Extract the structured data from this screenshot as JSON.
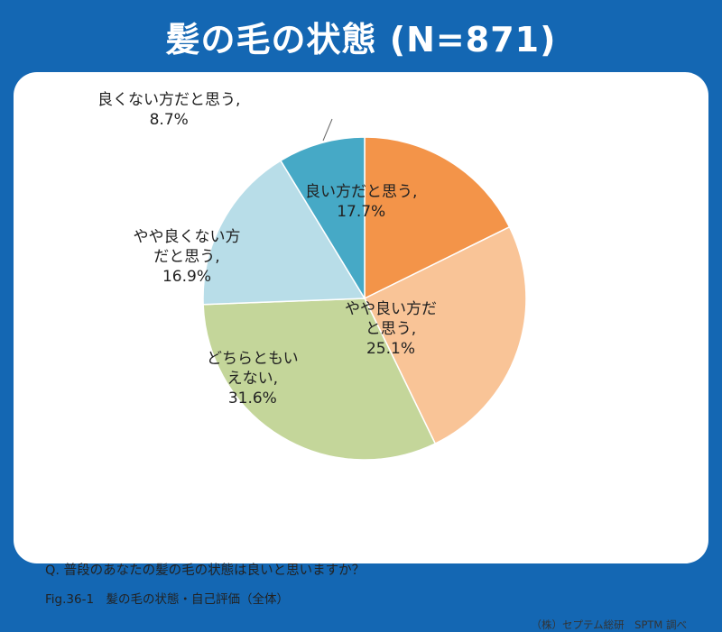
{
  "title": "髪の毛の状態 (N=871)",
  "chart_data": {
    "type": "pie",
    "n": 871,
    "slices": [
      {
        "label": "良い方だと思う,",
        "value": 17.7,
        "value_text": "17.7%",
        "color": "#f39449",
        "label_lines": [
          "良い方だと思う,",
          "17.7%"
        ]
      },
      {
        "label": "やや良い方だと思う,",
        "value": 25.1,
        "value_text": "25.1%",
        "color": "#f9c497",
        "label_lines": [
          "やや良い方だ",
          "と思う,",
          "25.1%"
        ]
      },
      {
        "label": "どちらともいえない,",
        "value": 31.6,
        "value_text": "31.6%",
        "color": "#c4d69a",
        "label_lines": [
          "どちらともい",
          "えない,",
          "31.6%"
        ]
      },
      {
        "label": "やや良くない方だと思う,",
        "value": 16.9,
        "value_text": "16.9%",
        "color": "#b8dde8",
        "label_lines": [
          "やや良くない方",
          "だと思う,",
          "16.9%"
        ]
      },
      {
        "label": "良くない方だと思う,",
        "value": 8.7,
        "value_text": "8.7%",
        "color": "#46a9c6",
        "label_lines": [
          "良くない方だと思う,",
          "8.7%"
        ]
      }
    ]
  },
  "question": "Q. 普段のあなたの髪の毛の状態は良いと思いますか？",
  "caption": "Fig.36-1　髪の毛の状態・自己評価（全体）",
  "source": "（株）セプテム総研　SPTM 調べ"
}
